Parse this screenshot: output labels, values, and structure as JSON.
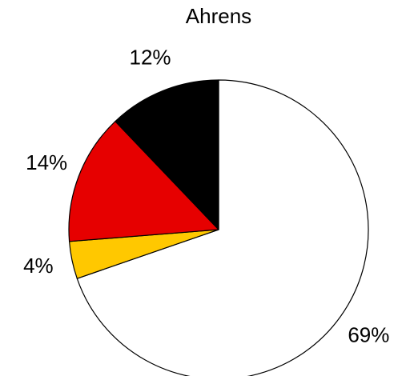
{
  "chart_data": {
    "type": "pie",
    "title": "Ahrens",
    "categories": [
      null,
      null,
      null,
      null
    ],
    "values": [
      69,
      4,
      14,
      12
    ],
    "value_labels": [
      "69%",
      "4%",
      "14%",
      "12%"
    ],
    "colors": [
      "#ffffff",
      "#ffc800",
      "#e60000",
      "#000000"
    ]
  }
}
